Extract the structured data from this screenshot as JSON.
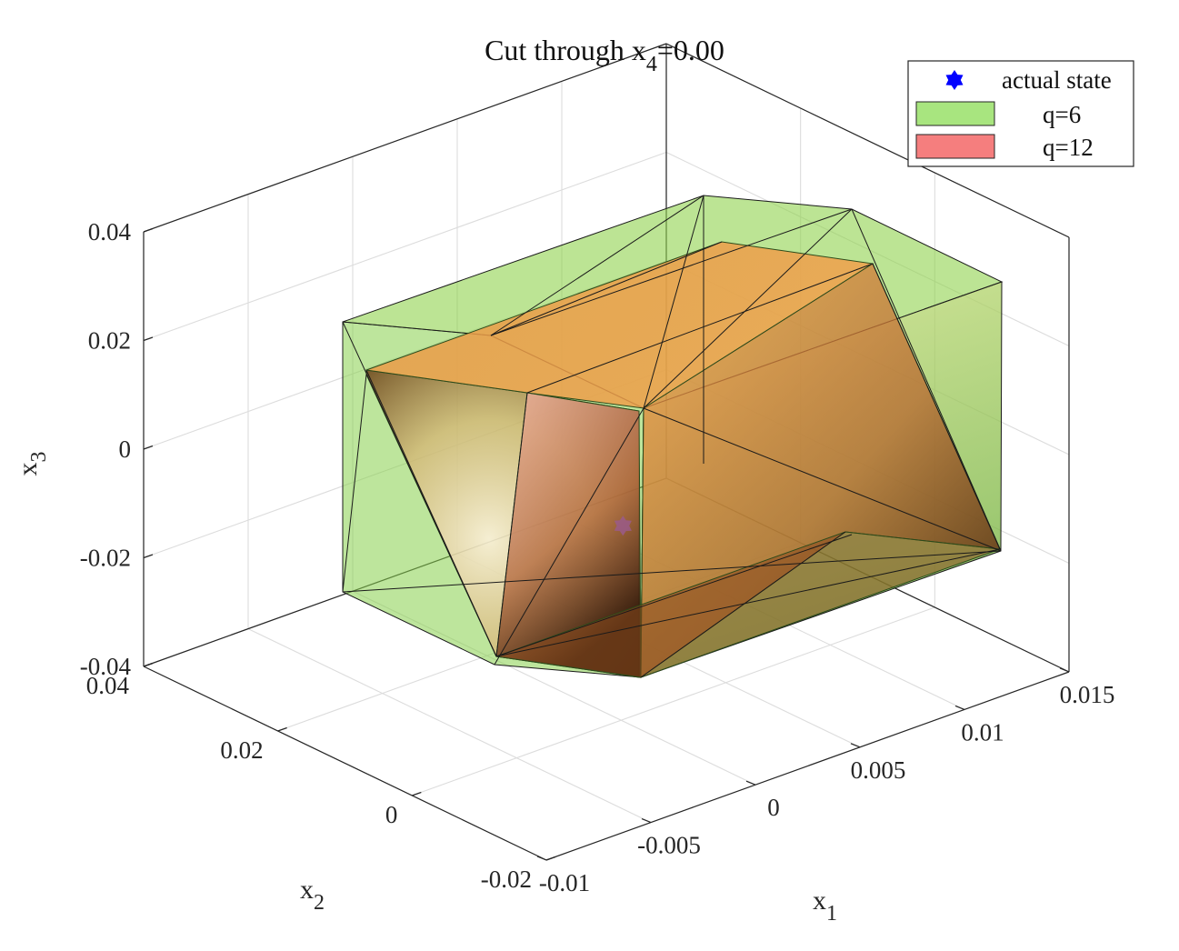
{
  "chart_data": {
    "type": "3d-polytope",
    "title_prefix": "Cut through x",
    "title_sub": "4",
    "title_suffix": "=0.00",
    "axes": {
      "x1": {
        "label": "x",
        "sub": "1",
        "range": [
          -0.01,
          0.015
        ],
        "ticks": [
          -0.01,
          -0.005,
          0,
          0.005,
          0.01,
          0.015
        ],
        "tick_labels": [
          "-0.01",
          "-0.005",
          "0",
          "0.005",
          "0.01",
          "0.015"
        ]
      },
      "x2": {
        "label": "x",
        "sub": "2",
        "range": [
          -0.02,
          0.04
        ],
        "ticks": [
          -0.02,
          0,
          0.02,
          0.04
        ],
        "tick_labels": [
          "-0.02",
          "0",
          "0.02",
          "0.04"
        ]
      },
      "x3": {
        "label": "x",
        "sub": "3",
        "range": [
          -0.04,
          0.04
        ],
        "ticks": [
          -0.04,
          -0.02,
          0,
          0.02,
          0.04
        ],
        "tick_labels": [
          "-0.04",
          "-0.02",
          "0",
          "0.02",
          "0.04"
        ]
      }
    },
    "grid": true,
    "legend": {
      "position": "top-right",
      "entries": [
        {
          "name": "actual state",
          "marker": "hexagram",
          "color": "#0000ff"
        },
        {
          "name": "q=6",
          "color": "#a8e57f"
        },
        {
          "name": "q=12",
          "color": "#f57e7e"
        }
      ]
    },
    "series": [
      {
        "name": "q=6",
        "type": "polytope",
        "color": "#7ccf3a",
        "alpha": 0.55
      },
      {
        "name": "q=12",
        "type": "polytope",
        "color": "#f07a5a",
        "alpha": 0.55
      },
      {
        "name": "actual state",
        "type": "point",
        "x1": 0,
        "x2": 0,
        "x3": 0,
        "color": "#0000ff"
      }
    ]
  }
}
